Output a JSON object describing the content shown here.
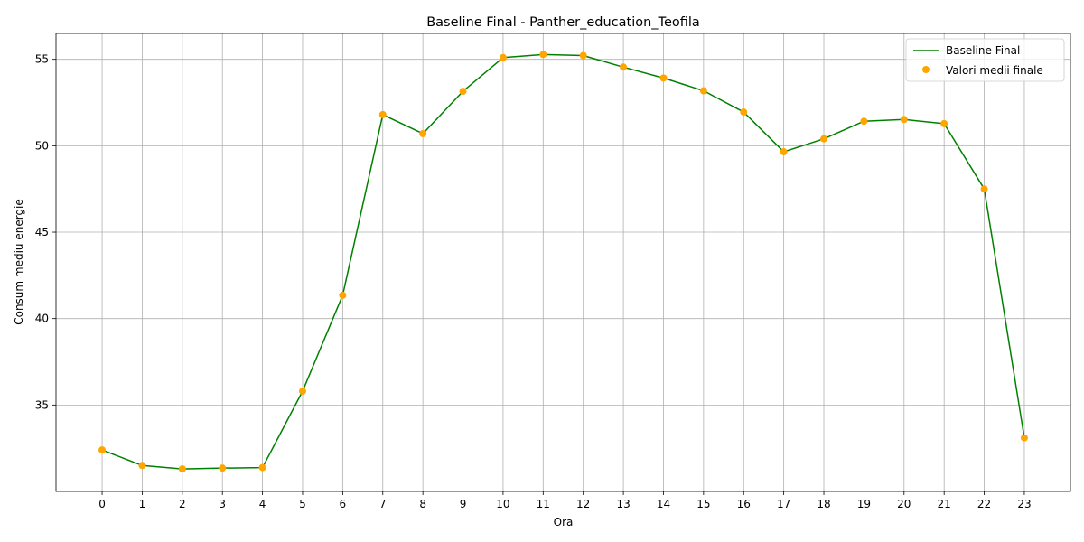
{
  "chart_data": {
    "type": "line",
    "title": "Baseline Final - Panther_education_Teofila",
    "xlabel": "Ora",
    "ylabel": "Consum mediu energie",
    "x": [
      0,
      1,
      2,
      3,
      4,
      5,
      6,
      7,
      8,
      9,
      10,
      11,
      12,
      13,
      14,
      15,
      16,
      17,
      18,
      19,
      20,
      21,
      22,
      23
    ],
    "xlim": [
      -1.15,
      24.15
    ],
    "ylim": [
      30.0,
      56.5
    ],
    "yticks": [
      35,
      40,
      45,
      50,
      55
    ],
    "grid": true,
    "legend_position": "top-right",
    "series": [
      {
        "name": "Baseline Final",
        "kind": "line",
        "color": "#008000",
        "values": [
          32.4,
          31.5,
          31.3,
          31.35,
          31.38,
          35.8,
          41.35,
          51.8,
          50.7,
          53.15,
          55.1,
          55.28,
          55.22,
          54.55,
          53.92,
          53.18,
          51.95,
          49.65,
          50.4,
          51.42,
          51.52,
          51.28,
          47.5,
          33.1
        ]
      },
      {
        "name": "Valori medii finale",
        "kind": "scatter",
        "color": "#ffa500",
        "values": [
          32.4,
          31.5,
          31.3,
          31.35,
          31.38,
          35.8,
          41.35,
          51.8,
          50.7,
          53.15,
          55.1,
          55.28,
          55.22,
          54.55,
          53.92,
          53.18,
          51.95,
          49.65,
          50.4,
          51.42,
          51.52,
          51.28,
          47.5,
          33.1
        ]
      }
    ]
  }
}
